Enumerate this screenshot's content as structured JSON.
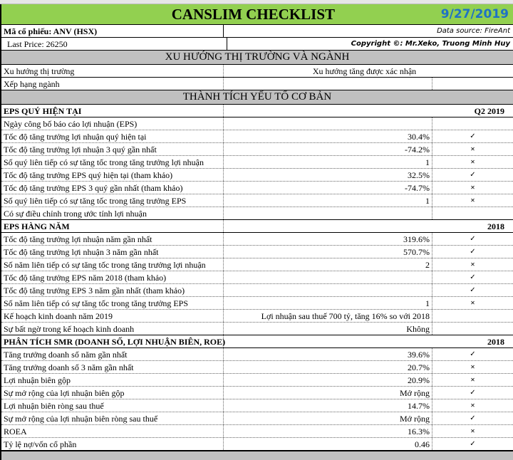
{
  "title": "CANSLIM CHECKLIST",
  "date": "9/27/2019",
  "ticker": "Mã cổ phiếu: ANV (HSX)",
  "data_source": "Data source: FireAnt",
  "last_price": "Last Price: 26250",
  "copyright": "Copyright ©: Mr.Xeko, Truong Minh Huy",
  "market_header": "XU HƯỚNG THỊ TRƯỜNG VÀ NGÀNH",
  "market_rows": [
    {
      "label": "Xu hướng thị trường",
      "value": "Xu hướng tăng được xác nhận"
    },
    {
      "label": "Xếp hạng ngành",
      "value": ""
    }
  ],
  "fund_header": "THÀNH TÍCH YẾU TỐ CƠ BẢN",
  "sections": [
    {
      "title": "EPS QUÝ HIỆN TẠI",
      "period": "Q2 2019",
      "rows": [
        {
          "label": "Ngày công bố báo cáo lợi nhuận (EPS)",
          "value": "",
          "mark": ""
        },
        {
          "label": "Tốc độ tăng trưởng lợi nhuận quý hiện tại",
          "value": "30.4%",
          "mark": "✓"
        },
        {
          "label": "Tốc độ tăng trưởng lợi nhuận 3 quý gần nhất",
          "value": "-74.2%",
          "mark": "✕"
        },
        {
          "label": "Số quý liên tiếp có sự tăng tốc trong tăng trưởng lợi nhuận",
          "value": "1",
          "mark": "✕"
        },
        {
          "label": "Tốc độ tăng trưởng EPS quý hiện tại (tham khảo)",
          "value": "32.5%",
          "mark": "✓"
        },
        {
          "label": "Tốc độ tăng trưởng EPS 3 quý gần nhất (tham khảo)",
          "value": "-74.7%",
          "mark": "✕"
        },
        {
          "label": "Số quý liên tiếp có sự tăng tốc trong tăng trưởng EPS",
          "value": "1",
          "mark": "✕"
        },
        {
          "label": "Có sự điều chỉnh trong ước tính lợi nhuận",
          "value": "",
          "mark": ""
        }
      ]
    },
    {
      "title": "EPS HÀNG NĂM",
      "period": "2018",
      "rows": [
        {
          "label": "Tốc độ tăng trưởng lợi nhuận năm gần nhất",
          "value": "319.6%",
          "mark": "✓"
        },
        {
          "label": "Tốc độ tăng trưởng lợi nhuận 3 năm gần nhất",
          "value": "570.7%",
          "mark": "✓"
        },
        {
          "label": "Số năm liên tiếp có sự tăng tốc trong tăng trưởng lợi nhuận",
          "value": "2",
          "mark": "✕"
        },
        {
          "label": "Tốc độ tăng trưởng EPS năm 2018 (tham khảo)",
          "value": "",
          "mark": "✓"
        },
        {
          "label": "Tốc độ tăng trưởng EPS 3 năm gần nhất (tham khảo)",
          "value": "",
          "mark": "✓"
        },
        {
          "label": "Số năm liên tiếp có sự tăng tốc trong tăng trưởng EPS",
          "value": "1",
          "mark": "✕"
        },
        {
          "label": "Kế hoạch kinh doanh năm 2019",
          "value": "Lợi nhuận sau thuế 700 tỷ, tăng 16% so với 2018",
          "mark": ""
        },
        {
          "label": "Sự bất ngờ trong kế hoạch kinh doanh",
          "value": "Không",
          "mark": ""
        }
      ]
    },
    {
      "title": "PHÂN TÍCH SMR (DOANH SỐ, LỢI NHUẬN BIÊN, ROE)",
      "period": "2018",
      "rows": [
        {
          "label": "Tăng trưởng doanh số năm gần nhất",
          "value": "39.6%",
          "mark": "✓"
        },
        {
          "label": "Tăng trưởng doanh số 3 năm gần nhất",
          "value": "20.7%",
          "mark": "✕"
        },
        {
          "label": "Lợi nhuận biên gộp",
          "value": "20.9%",
          "mark": "✕"
        },
        {
          "label": "Sự mở rộng của lợi nhuận biên gộp",
          "value": "Mở rộng",
          "mark": "✓"
        },
        {
          "label": "Lợi nhuận biên ròng sau thuế",
          "value": "14.7%",
          "mark": "✕"
        },
        {
          "label": "Sự mở rộng của lợi nhuận biên ròng sau thuế",
          "value": "Mở rộng",
          "mark": "✓"
        },
        {
          "label": "ROEA",
          "value": "16.3%",
          "mark": "✕"
        },
        {
          "label": "Tỷ lệ nợ/vốn cổ phần",
          "value": "0.46",
          "mark": "✓"
        }
      ]
    }
  ]
}
